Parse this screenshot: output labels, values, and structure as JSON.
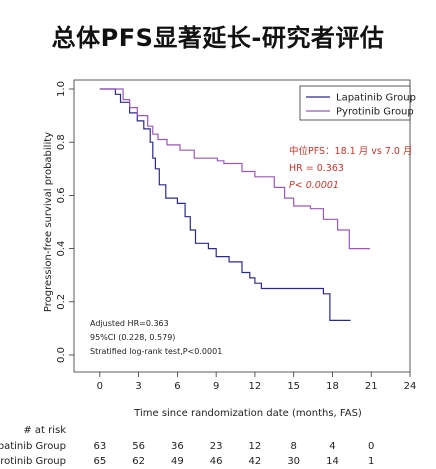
{
  "page_title": "总体PFS显著延长-研究者评估",
  "chart_data": {
    "type": "line",
    "subtype": "kaplan-meier",
    "xlabel": "Time since randomization date (months, FAS)",
    "ylabel": "Progression-free survival probability",
    "xlim": [
      -2,
      24
    ],
    "ylim": [
      0,
      1
    ],
    "x_ticks": [
      "0",
      "3",
      "6",
      "9",
      "12",
      "15",
      "18",
      "21",
      "24"
    ],
    "y_ticks": [
      "0.0",
      "0.2",
      "0.4",
      "0.6",
      "0.8",
      "1.0"
    ],
    "legend_position": "top-right",
    "series": [
      {
        "name": "Lapatinib Group",
        "color": "#2b2b8c",
        "x": [
          0,
          1.2,
          1.2,
          1.6,
          1.6,
          2.3,
          2.3,
          2.9,
          2.9,
          3.4,
          3.4,
          3.9,
          3.9,
          4.1,
          4.1,
          4.3,
          4.3,
          4.6,
          4.6,
          5.1,
          5.1,
          5.5,
          5.5,
          6.0,
          6.0,
          6.6,
          6.6,
          7.0,
          7.0,
          7.4,
          7.4,
          8.4,
          8.4,
          9.0,
          9.0,
          10.0,
          10.0,
          11.0,
          11.0,
          11.6,
          11.6,
          12.0,
          12.0,
          12.5,
          12.5,
          13.8,
          13.8,
          17.3,
          17.3,
          17.8,
          17.8,
          19.4
        ],
        "y": [
          1.0,
          1.0,
          0.98,
          0.98,
          0.95,
          0.95,
          0.91,
          0.91,
          0.88,
          0.88,
          0.85,
          0.85,
          0.8,
          0.8,
          0.74,
          0.74,
          0.7,
          0.7,
          0.64,
          0.64,
          0.59,
          0.59,
          0.59,
          0.59,
          0.57,
          0.57,
          0.52,
          0.52,
          0.47,
          0.47,
          0.42,
          0.42,
          0.4,
          0.4,
          0.37,
          0.37,
          0.35,
          0.35,
          0.31,
          0.31,
          0.29,
          0.29,
          0.27,
          0.27,
          0.25,
          0.25,
          0.25,
          0.25,
          0.23,
          0.23,
          0.13,
          0.13
        ]
      },
      {
        "name": "Pyrotinib Group",
        "color": "#9b59b6",
        "x": [
          0,
          1.8,
          1.8,
          2.3,
          2.3,
          2.9,
          2.9,
          3.7,
          3.7,
          4.1,
          4.1,
          4.5,
          4.5,
          5.2,
          5.2,
          6.2,
          6.2,
          7.3,
          7.3,
          9.1,
          9.1,
          9.6,
          9.6,
          11.0,
          11.0,
          12.0,
          12.0,
          13.5,
          13.5,
          14.3,
          14.3,
          15.0,
          15.0,
          16.3,
          16.3,
          17.3,
          17.3,
          18.4,
          18.4,
          19.3,
          19.3,
          20.9
        ],
        "y": [
          1.0,
          1.0,
          0.96,
          0.96,
          0.93,
          0.93,
          0.9,
          0.9,
          0.86,
          0.86,
          0.83,
          0.83,
          0.81,
          0.81,
          0.79,
          0.79,
          0.77,
          0.77,
          0.74,
          0.74,
          0.73,
          0.73,
          0.72,
          0.72,
          0.69,
          0.69,
          0.67,
          0.67,
          0.63,
          0.63,
          0.59,
          0.59,
          0.56,
          0.56,
          0.55,
          0.55,
          0.51,
          0.51,
          0.47,
          0.47,
          0.4,
          0.4
        ]
      }
    ],
    "annotations": {
      "median_pfs": "中位PFS：18.1 月 vs 7.0 月",
      "hr": "HR = 0.363",
      "p_value": "P< 0.0001"
    },
    "stats_box": {
      "line1": "Adjusted HR=0.363",
      "line2": "95%CI (0.228, 0.579)",
      "line3": "Stratified log-rank test,P<0.0001"
    },
    "at_risk": {
      "header": "# at risk",
      "rows": [
        {
          "label": "Lapatinib Group",
          "values": [
            "63",
            "56",
            "36",
            "23",
            "12",
            "8",
            "4",
            "0"
          ]
        },
        {
          "label": "Pyrotinib Group",
          "values": [
            "65",
            "62",
            "49",
            "46",
            "42",
            "30",
            "14",
            "1"
          ]
        }
      ]
    }
  }
}
